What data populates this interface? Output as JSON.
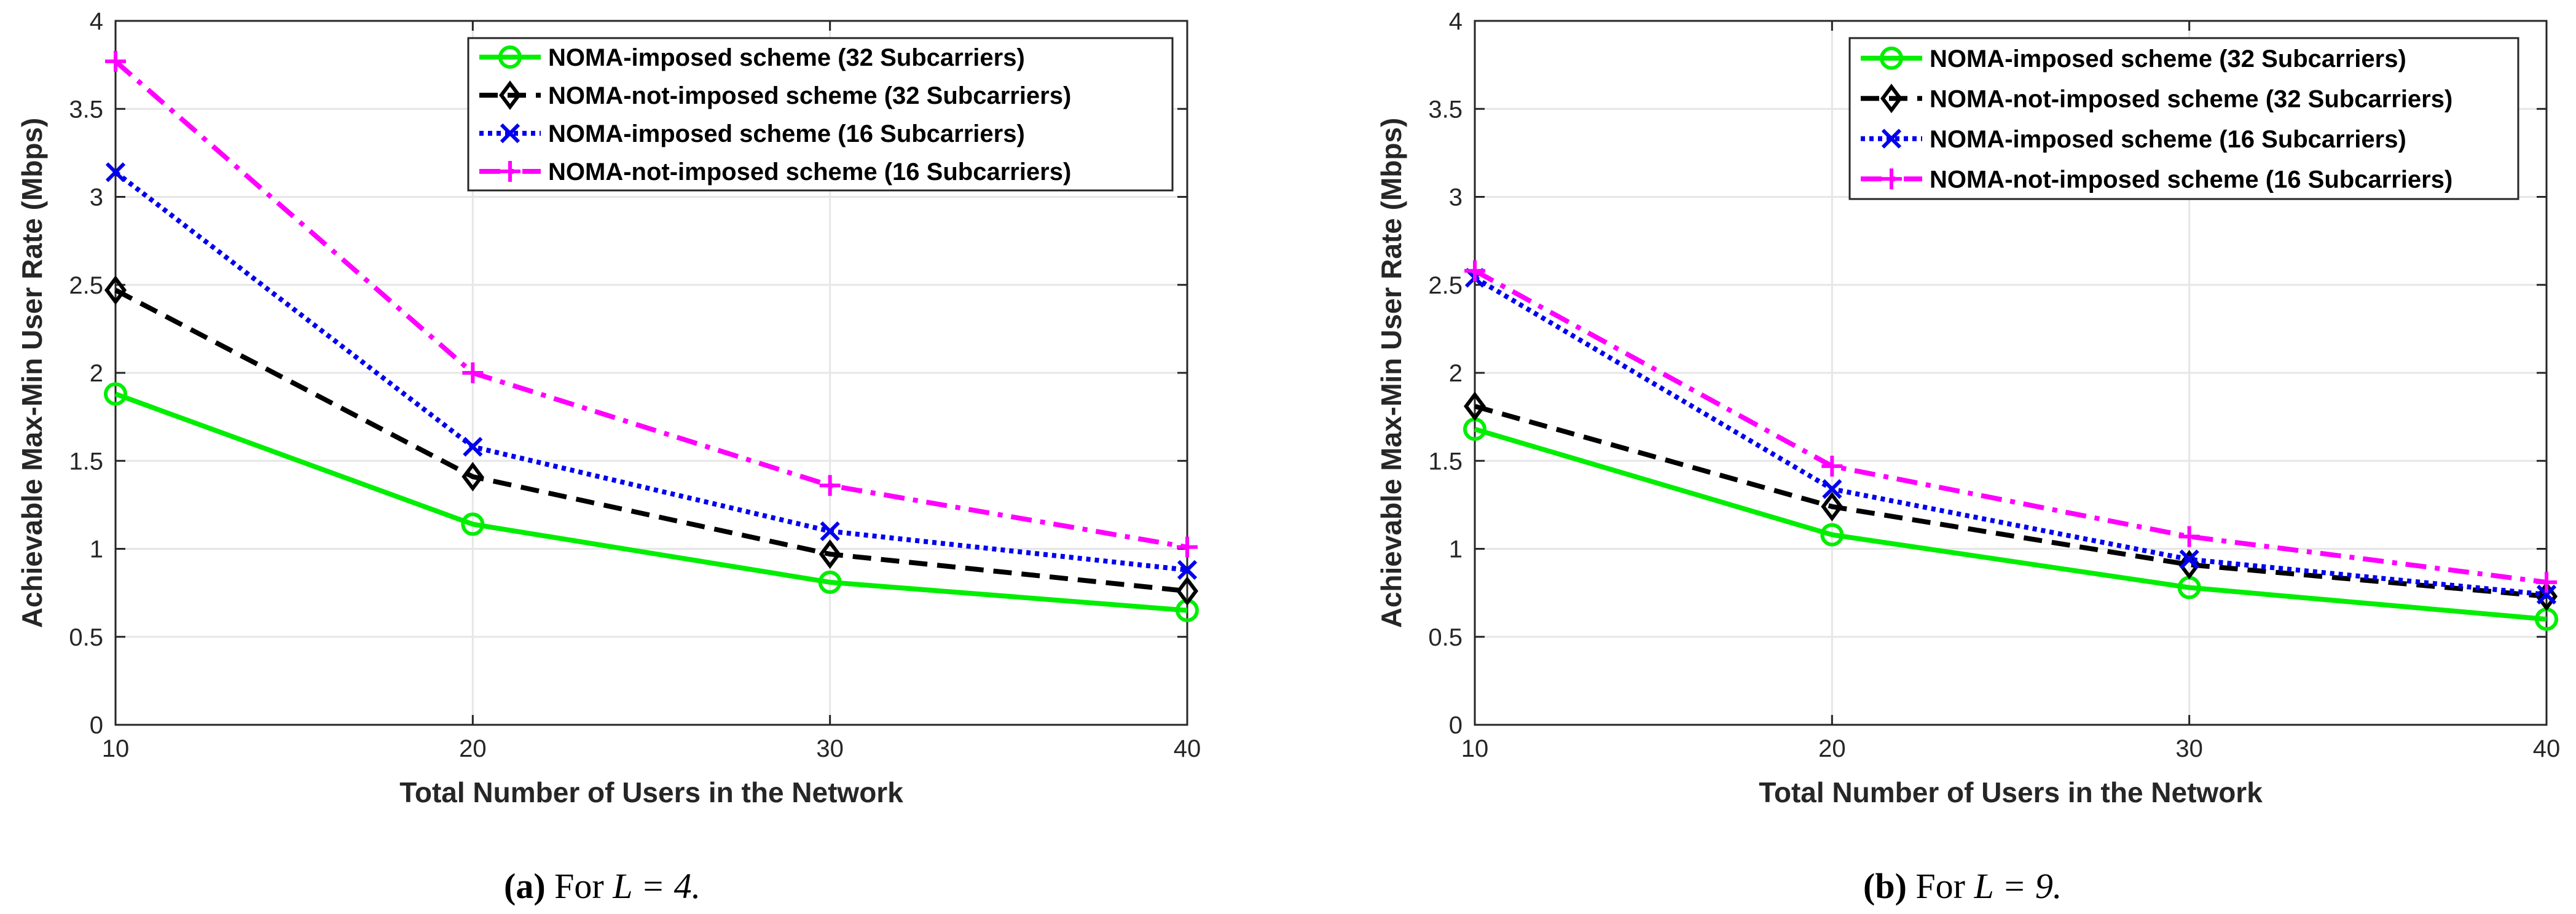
{
  "colors": {
    "noma_imposed_32": "#00ee00",
    "noma_not_imposed_32": "#000000",
    "noma_imposed_16": "#0000ee",
    "noma_not_imposed_16": "#ff00ff",
    "grid": "#e6e6e6",
    "axis": "#262626"
  },
  "chart_data": [
    {
      "type": "line",
      "caption_label": "(a)",
      "caption_text": " For ",
      "caption_math": "L = 4.",
      "xlabel": "Total Number of Users in the Network",
      "ylabel": "Achievable Max-Min User Rate (Mbps)",
      "x": [
        10,
        20,
        30,
        40
      ],
      "xlim": [
        10,
        40
      ],
      "ylim": [
        0,
        4
      ],
      "xticks": [
        "10",
        "20",
        "30",
        "40"
      ],
      "yticks": [
        "0",
        "0.5",
        "1",
        "1.5",
        "2",
        "2.5",
        "3",
        "3.5",
        "4"
      ],
      "grid": true,
      "legend_position": "top-right",
      "series": [
        {
          "name": "NOMA-imposed scheme (32 Subcarriers)",
          "values": [
            1.88,
            1.14,
            0.81,
            0.65
          ],
          "marker": "circle",
          "style": "solid",
          "color_key": "noma_imposed_32"
        },
        {
          "name": "NOMA-not-imposed scheme (32 Subcarriers)",
          "values": [
            2.47,
            1.41,
            0.97,
            0.76
          ],
          "marker": "diamond",
          "style": "dashed",
          "color_key": "noma_not_imposed_32"
        },
        {
          "name": "NOMA-imposed scheme (16 Subcarriers)",
          "values": [
            3.14,
            1.58,
            1.1,
            0.88
          ],
          "marker": "x",
          "style": "dotted",
          "color_key": "noma_imposed_16"
        },
        {
          "name": "NOMA-not-imposed scheme (16 Subcarriers)",
          "values": [
            3.77,
            2.0,
            1.36,
            1.01
          ],
          "marker": "plus",
          "style": "dashdot",
          "color_key": "noma_not_imposed_16"
        }
      ]
    },
    {
      "type": "line",
      "caption_label": "(b)",
      "caption_text": " For ",
      "caption_math": "L = 9.",
      "xlabel": "Total Number of Users in the Network",
      "ylabel": "Achievable Max-Min User Rate (Mbps)",
      "x": [
        10,
        20,
        30,
        40
      ],
      "xlim": [
        10,
        40
      ],
      "ylim": [
        0,
        4
      ],
      "xticks": [
        "10",
        "20",
        "30",
        "40"
      ],
      "yticks": [
        "0",
        "0.5",
        "1",
        "1.5",
        "2",
        "2.5",
        "3",
        "3.5",
        "4"
      ],
      "grid": true,
      "legend_position": "top-right",
      "series": [
        {
          "name": "NOMA-imposed scheme (32 Subcarriers)",
          "values": [
            1.68,
            1.08,
            0.78,
            0.6
          ],
          "marker": "circle",
          "style": "solid",
          "color_key": "noma_imposed_32"
        },
        {
          "name": "NOMA-not-imposed scheme (32 Subcarriers)",
          "values": [
            1.81,
            1.24,
            0.91,
            0.73
          ],
          "marker": "diamond",
          "style": "dashed",
          "color_key": "noma_not_imposed_32"
        },
        {
          "name": "NOMA-imposed scheme (16 Subcarriers)",
          "values": [
            2.54,
            1.34,
            0.94,
            0.74
          ],
          "marker": "x",
          "style": "dotted",
          "color_key": "noma_imposed_16"
        },
        {
          "name": "NOMA-not-imposed scheme (16 Subcarriers)",
          "values": [
            2.58,
            1.47,
            1.07,
            0.81
          ],
          "marker": "plus",
          "style": "dashdot",
          "color_key": "noma_not_imposed_16"
        }
      ]
    }
  ]
}
